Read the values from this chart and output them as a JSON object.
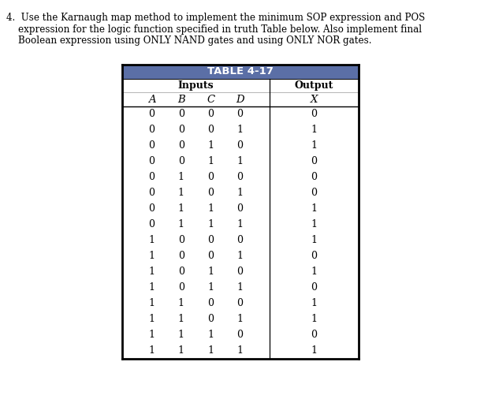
{
  "title": "TABLE 4-17",
  "title_bg": "#5B6FA6",
  "title_fg": "#FFFFFF",
  "header_inputs": "Inputs",
  "header_output": "Output",
  "col_labels": [
    "A",
    "B",
    "C",
    "D",
    "X"
  ],
  "rows": [
    [
      0,
      0,
      0,
      0,
      0
    ],
    [
      0,
      0,
      0,
      1,
      1
    ],
    [
      0,
      0,
      1,
      0,
      1
    ],
    [
      0,
      0,
      1,
      1,
      0
    ],
    [
      0,
      1,
      0,
      0,
      0
    ],
    [
      0,
      1,
      0,
      1,
      0
    ],
    [
      0,
      1,
      1,
      0,
      1
    ],
    [
      0,
      1,
      1,
      1,
      1
    ],
    [
      1,
      0,
      0,
      0,
      1
    ],
    [
      1,
      0,
      0,
      1,
      0
    ],
    [
      1,
      0,
      1,
      0,
      1
    ],
    [
      1,
      0,
      1,
      1,
      0
    ],
    [
      1,
      1,
      0,
      0,
      1
    ],
    [
      1,
      1,
      0,
      1,
      1
    ],
    [
      1,
      1,
      1,
      0,
      0
    ],
    [
      1,
      1,
      1,
      1,
      1
    ]
  ],
  "question_lines": [
    "4.  Use the Karnaugh map method to implement the minimum SOP expression and POS",
    "    expression for the logic function specified in truth Table below. Also implement final",
    "    Boolean expression using ONLY NAND gates and using ONLY NOR gates."
  ],
  "bg_color": "#FFFFFF",
  "text_color": "#000000"
}
